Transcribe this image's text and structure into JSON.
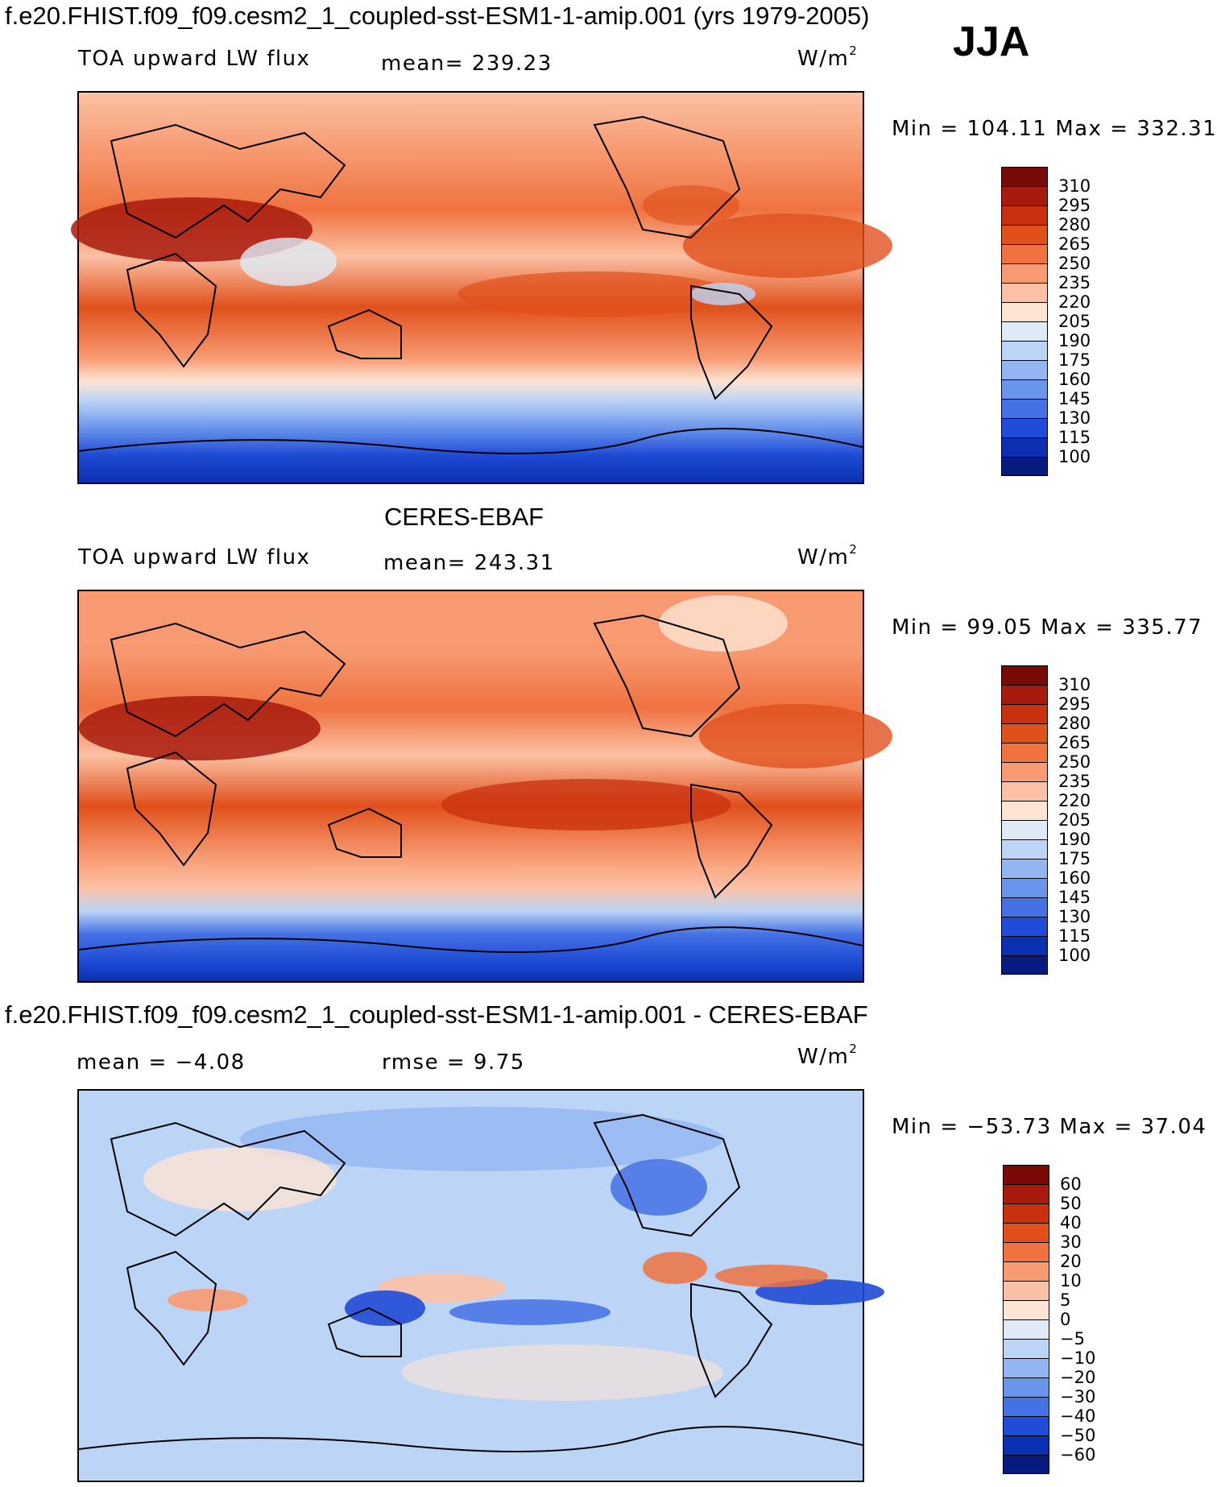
{
  "header": {
    "title": "f.e20.FHIST.f09_f09.cesm2_1_coupled-sst-ESM1-1-amip.001 (yrs 1979-2005)",
    "season": "JJA"
  },
  "panels": [
    {
      "title": "",
      "variable": "TOA upward LW flux",
      "stat1": "mean= 239.23",
      "stat2": "",
      "units": "W/m",
      "units_exp": "2",
      "minmax": "Min = 104.11 Max = 332.31",
      "type": "absolute"
    },
    {
      "title": "CERES-EBAF",
      "variable": "TOA upward LW flux",
      "stat1": "mean= 243.31",
      "stat2": "",
      "units": "W/m",
      "units_exp": "2",
      "minmax": "Min =  99.05 Max = 335.77",
      "type": "absolute"
    },
    {
      "title": "f.e20.FHIST.f09_f09.cesm2_1_coupled-sst-ESM1-1-amip.001 - CERES-EBAF",
      "variable": "mean =   −4.08",
      "stat1": "rmse =    9.75",
      "stat2": "",
      "units": "W/m",
      "units_exp": "2",
      "minmax": "Min = −53.73 Max =  37.04",
      "type": "difference"
    }
  ],
  "colorbar_abs": {
    "labels": [
      "310",
      "295",
      "280",
      "265",
      "250",
      "235",
      "220",
      "205",
      "190",
      "175",
      "160",
      "145",
      "130",
      "115",
      "100"
    ],
    "colors": [
      "#7a0a05",
      "#a81a0d",
      "#c8300f",
      "#e0501b",
      "#ef7240",
      "#f79a71",
      "#fcc1a4",
      "#fde4d3",
      "#deebf7",
      "#bcd4f6",
      "#93b6f2",
      "#6a95ec",
      "#4471e4",
      "#1f4bd6",
      "#0a2fb0",
      "#061a80"
    ]
  },
  "colorbar_diff": {
    "labels": [
      "60",
      "50",
      "40",
      "30",
      "20",
      "10",
      "5",
      "0",
      "−5",
      "−10",
      "−20",
      "−30",
      "−40",
      "−50",
      "−60"
    ],
    "colors": [
      "#7a0a05",
      "#a81a0d",
      "#c8300f",
      "#e0501b",
      "#ef7240",
      "#f79a71",
      "#fcc1a4",
      "#fde4d3",
      "#deebf7",
      "#bcd4f6",
      "#93b6f2",
      "#6a95ec",
      "#4471e4",
      "#1f4bd6",
      "#0a2fb0",
      "#061a80"
    ]
  }
}
